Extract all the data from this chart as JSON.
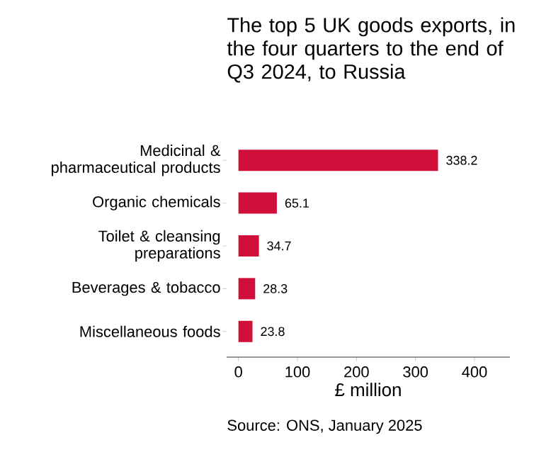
{
  "chart_data": {
    "type": "bar",
    "orientation": "horizontal",
    "title": "The top 5 UK goods exports, in the four quarters to the end of Q3 2024, to Russia",
    "categories": [
      "Medicinal & pharmaceutical products",
      "Organic chemicals",
      "Toilet & cleansing preparations",
      "Beverages & tobacco",
      "Miscellaneous foods"
    ],
    "values": [
      338.2,
      65.1,
      34.7,
      28.3,
      23.8
    ],
    "color": "#d0103a",
    "xlim": [
      -20,
      460
    ],
    "xticks": [
      0,
      100,
      200,
      300,
      400
    ],
    "xlabel": "£ million",
    "data_labels": true,
    "annotations": [
      "Source: ONS, January 2025"
    ]
  }
}
